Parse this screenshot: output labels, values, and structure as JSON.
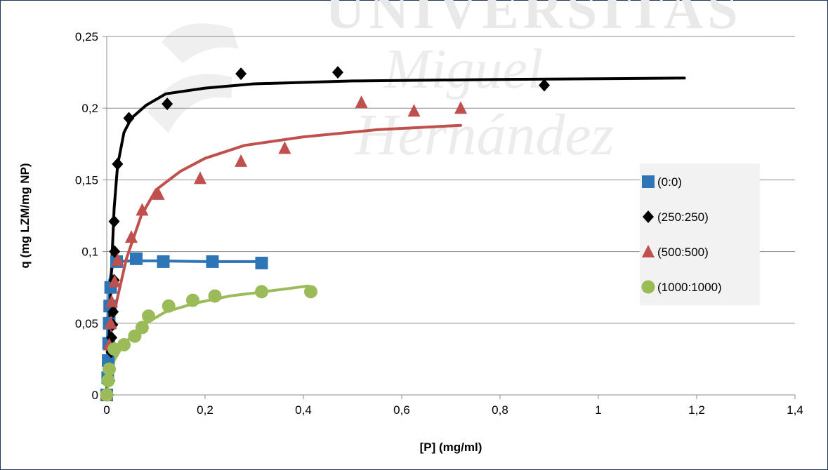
{
  "chart_data": {
    "type": "scatter",
    "title": "",
    "xlabel": "[P] (mg/ml)",
    "ylabel": "q (mg LZM/mg NP)",
    "xlim": [
      0,
      1.4
    ],
    "ylim": [
      0,
      0.25
    ],
    "xticks": [
      0,
      0.2,
      0.4,
      0.6,
      0.8,
      1,
      1.2,
      1.4
    ],
    "yticks": [
      0,
      0.05,
      0.1,
      0.15,
      0.2,
      0.25
    ],
    "xtick_labels": [
      "0",
      "0,2",
      "0,4",
      "0,6",
      "0,8",
      "1",
      "1,2",
      "1,4"
    ],
    "ytick_labels": [
      "0",
      "0,05",
      "0,1",
      "0,15",
      "0,2",
      "0,25"
    ],
    "grid": "horizontal",
    "legend_position": "right",
    "watermark": "UNIVERSITAS Miguel Hernández",
    "series": [
      {
        "name": "(0:0)",
        "marker": "square",
        "color": "#2e75b6",
        "points": [
          [
            0,
            0
          ],
          [
            0.002,
            0.012
          ],
          [
            0.003,
            0.024
          ],
          [
            0.004,
            0.036
          ],
          [
            0.005,
            0.05
          ],
          [
            0.006,
            0.062
          ],
          [
            0.008,
            0.075
          ],
          [
            0.02,
            0.093
          ],
          [
            0.06,
            0.095
          ],
          [
            0.115,
            0.093
          ],
          [
            0.215,
            0.093
          ],
          [
            0.315,
            0.092
          ]
        ],
        "fit": [
          [
            0,
            0
          ],
          [
            0.002,
            0.05
          ],
          [
            0.006,
            0.08
          ],
          [
            0.012,
            0.09
          ],
          [
            0.02,
            0.093
          ],
          [
            0.05,
            0.0935
          ],
          [
            0.1,
            0.0935
          ],
          [
            0.2,
            0.093
          ],
          [
            0.32,
            0.093
          ]
        ]
      },
      {
        "name": "(250:250)",
        "marker": "diamond",
        "color": "#000000",
        "points": [
          [
            0.003,
            0
          ],
          [
            0.006,
            0.01
          ],
          [
            0.009,
            0.03
          ],
          [
            0.01,
            0.04
          ],
          [
            0.012,
            0.049
          ],
          [
            0.013,
            0.058
          ],
          [
            0.015,
            0.08
          ],
          [
            0.016,
            0.1
          ],
          [
            0.015,
            0.121
          ],
          [
            0.022,
            0.161
          ],
          [
            0.045,
            0.193
          ],
          [
            0.123,
            0.203
          ],
          [
            0.273,
            0.224
          ],
          [
            0.47,
            0.225
          ],
          [
            0.89,
            0.216
          ]
        ],
        "fit": [
          [
            0,
            0
          ],
          [
            0.005,
            0.04
          ],
          [
            0.01,
            0.09
          ],
          [
            0.015,
            0.13
          ],
          [
            0.022,
            0.16
          ],
          [
            0.035,
            0.183
          ],
          [
            0.05,
            0.193
          ],
          [
            0.08,
            0.202
          ],
          [
            0.12,
            0.21
          ],
          [
            0.2,
            0.214
          ],
          [
            0.3,
            0.217
          ],
          [
            0.5,
            0.219
          ],
          [
            0.8,
            0.22
          ],
          [
            1.175,
            0.221
          ]
        ]
      },
      {
        "name": "(500:500)",
        "marker": "triangle",
        "color": "#c0504d",
        "points": [
          [
            0,
            0
          ],
          [
            0.005,
            0.035
          ],
          [
            0.008,
            0.05
          ],
          [
            0.01,
            0.065
          ],
          [
            0.016,
            0.079
          ],
          [
            0.022,
            0.094
          ],
          [
            0.05,
            0.11
          ],
          [
            0.072,
            0.129
          ],
          [
            0.105,
            0.14
          ],
          [
            0.19,
            0.151
          ],
          [
            0.273,
            0.163
          ],
          [
            0.362,
            0.172
          ],
          [
            0.518,
            0.204
          ],
          [
            0.625,
            0.198
          ],
          [
            0.72,
            0.2
          ]
        ],
        "fit": [
          [
            0.01,
            0.045
          ],
          [
            0.02,
            0.065
          ],
          [
            0.04,
            0.095
          ],
          [
            0.07,
            0.125
          ],
          [
            0.1,
            0.143
          ],
          [
            0.15,
            0.156
          ],
          [
            0.2,
            0.165
          ],
          [
            0.28,
            0.174
          ],
          [
            0.4,
            0.18
          ],
          [
            0.55,
            0.185
          ],
          [
            0.72,
            0.188
          ]
        ]
      },
      {
        "name": "(1000:1000)",
        "marker": "circle",
        "color": "#9bbb59",
        "points": [
          [
            0,
            0
          ],
          [
            0.003,
            0.01
          ],
          [
            0.005,
            0.018
          ],
          [
            0.015,
            0.032
          ],
          [
            0.035,
            0.035
          ],
          [
            0.057,
            0.041
          ],
          [
            0.072,
            0.047
          ],
          [
            0.085,
            0.055
          ],
          [
            0.126,
            0.062
          ],
          [
            0.175,
            0.066
          ],
          [
            0.22,
            0.069
          ],
          [
            0.315,
            0.072
          ],
          [
            0.415,
            0.072
          ]
        ],
        "fit": [
          [
            0,
            0
          ],
          [
            0.005,
            0.012
          ],
          [
            0.015,
            0.024
          ],
          [
            0.03,
            0.033
          ],
          [
            0.05,
            0.041
          ],
          [
            0.08,
            0.05
          ],
          [
            0.12,
            0.058
          ],
          [
            0.18,
            0.064
          ],
          [
            0.25,
            0.069
          ],
          [
            0.32,
            0.072
          ],
          [
            0.41,
            0.076
          ]
        ]
      }
    ]
  }
}
